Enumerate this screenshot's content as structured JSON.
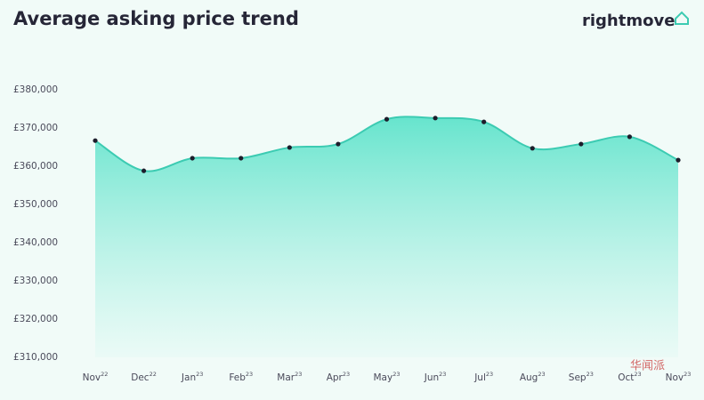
{
  "chart_data": {
    "type": "area",
    "title": "Average asking price trend",
    "brand": "rightmove",
    "watermark": "华闻派",
    "categories": [
      "Nov",
      "Dec",
      "Jan",
      "Feb",
      "Mar",
      "Apr",
      "May",
      "Jun",
      "Jul",
      "Aug",
      "Sep",
      "Oct",
      "Nov"
    ],
    "category_years": [
      "22",
      "22",
      "23",
      "23",
      "23",
      "23",
      "23",
      "23",
      "23",
      "23",
      "23",
      "23",
      "23"
    ],
    "series": [
      {
        "name": "Average asking price",
        "color": "#3ccbb2",
        "values": [
          366700,
          358800,
          362100,
          362100,
          364900,
          365800,
          372300,
          372600,
          371600,
          364700,
          365800,
          367700,
          361600
        ]
      }
    ],
    "ylim": [
      310000,
      380000
    ],
    "yticks": [
      {
        "value": 310000,
        "label": "£310,000"
      },
      {
        "value": 320000,
        "label": "£320,000"
      },
      {
        "value": 330000,
        "label": "£330,000"
      },
      {
        "value": 340000,
        "label": "£340,000"
      },
      {
        "value": 350000,
        "label": "£350,000"
      },
      {
        "value": 360000,
        "label": "£360,000"
      },
      {
        "value": 370000,
        "label": "£370,000"
      },
      {
        "value": 380000,
        "label": "£380,000"
      }
    ],
    "grid": false
  }
}
